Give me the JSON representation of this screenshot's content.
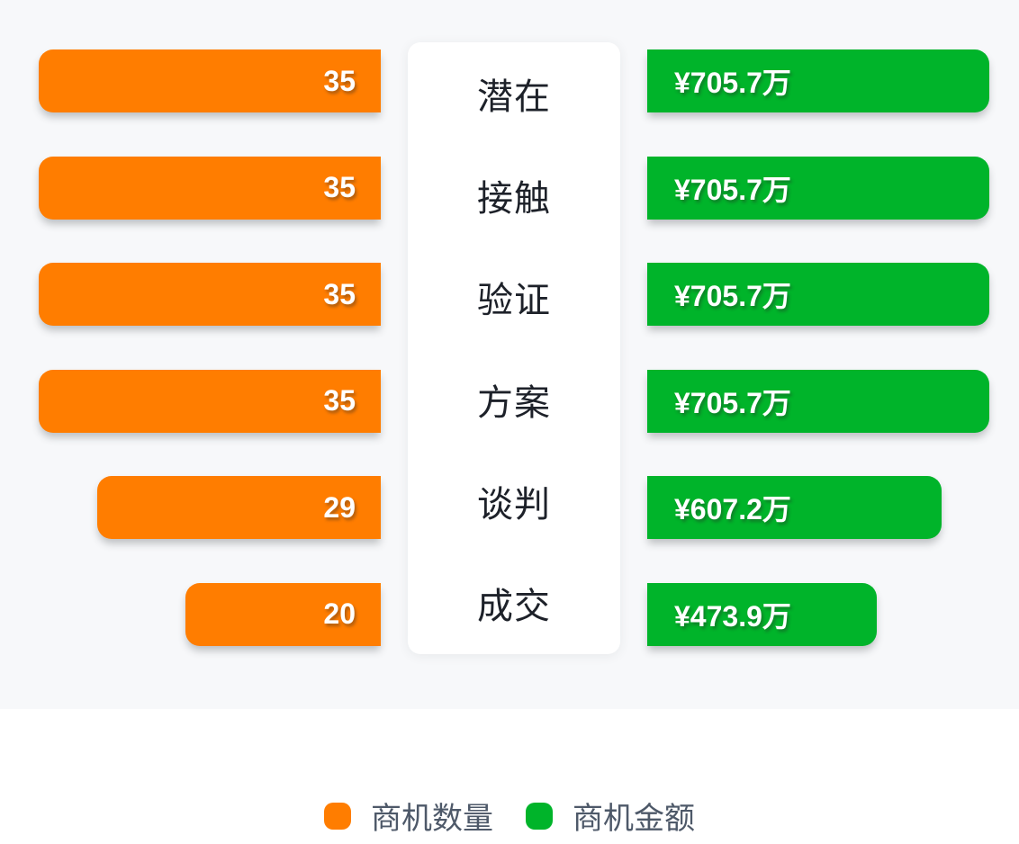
{
  "colors": {
    "background": "#f7f8fa",
    "card": "#ffffff",
    "count_bar": "#ff7d00",
    "amount_bar": "#00b42a",
    "bar_text": "#ffffff",
    "stage_text": "#1d2129",
    "legend_text": "#4e5969"
  },
  "funnel": {
    "stages": [
      {
        "stage": "潜在",
        "count": "35",
        "amount": "¥705.7万"
      },
      {
        "stage": "接触",
        "count": "35",
        "amount": "¥705.7万"
      },
      {
        "stage": "验证",
        "count": "35",
        "amount": "¥705.7万"
      },
      {
        "stage": "方案",
        "count": "35",
        "amount": "¥705.7万"
      },
      {
        "stage": "谈判",
        "count": "29",
        "amount": "¥607.2万"
      },
      {
        "stage": "成交",
        "count": "20",
        "amount": "¥473.9万"
      }
    ]
  },
  "legend": {
    "items": [
      {
        "label": "商机数量",
        "color": "#ff7d00"
      },
      {
        "label": "商机金额",
        "color": "#00b42a"
      }
    ]
  },
  "chart_data": {
    "type": "bar",
    "variant": "funnel-comparison",
    "orientation": "horizontal",
    "title": "",
    "categories": [
      "潜在",
      "接触",
      "验证",
      "方案",
      "谈判",
      "成交"
    ],
    "series": [
      {
        "name": "商机数量",
        "values": [
          35,
          35,
          35,
          35,
          29,
          20
        ],
        "color": "#ff7d00",
        "label_format": "{value}"
      },
      {
        "name": "商机金额",
        "values": [
          705.7,
          705.7,
          705.7,
          705.7,
          607.2,
          473.9
        ],
        "color": "#00b42a",
        "label_format": "¥{value}万"
      }
    ],
    "legend_position": "bottom",
    "grid": false
  }
}
